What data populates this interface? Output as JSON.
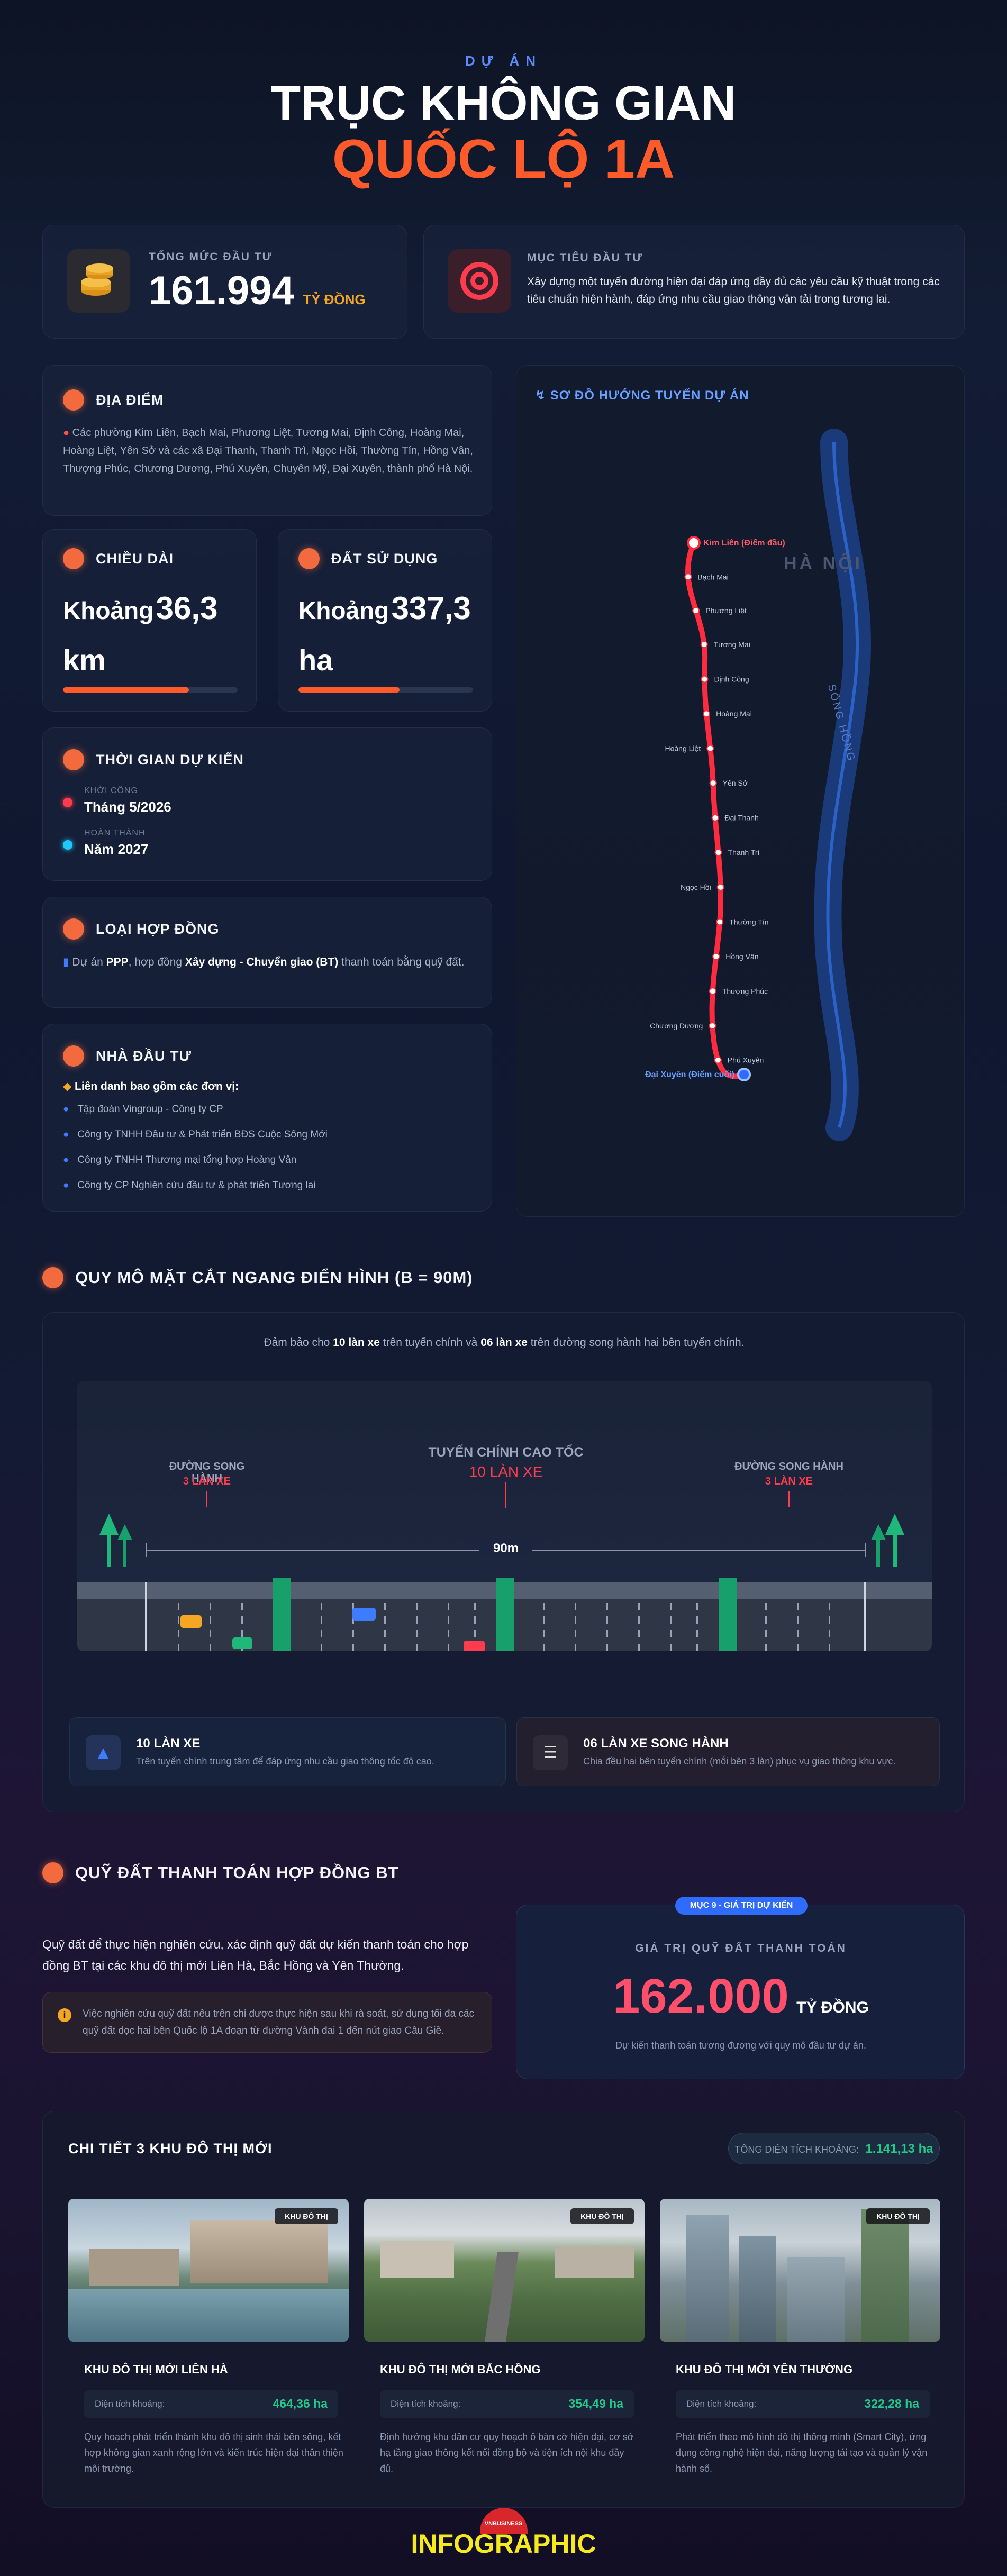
{
  "header": {
    "eyebrow": "DỰ ÁN",
    "title_line1": "TRỤC KHÔNG GIAN",
    "title_line2": "QUỐC LỘ 1A"
  },
  "investment": {
    "label": "TỔNG MỨC ĐẦU TƯ",
    "value": "161.994",
    "unit": "TỶ ĐỒNG",
    "icon": "coins-icon"
  },
  "goal": {
    "label": "MỤC TIÊU ĐẦU TƯ",
    "text": "Xây dựng một tuyến đường hiện đại đáp ứng đầy đủ các yêu cầu kỹ thuật trong các tiêu chuẩn hiện hành, đáp ứng nhu cầu giao thông vận tải trong tương lai.",
    "icon": "target-icon"
  },
  "location": {
    "title": "ĐỊA ĐIỂM",
    "text": "Các phường Kim Liên, Bạch Mai, Phương Liệt, Tương Mai, Định Công, Hoàng Mai, Hoàng Liệt, Yên Sở và các xã Đại Thanh, Thanh Trì, Ngọc Hồi, Thường Tín, Hồng Vân, Thượng Phúc, Chương Dương, Phú Xuyên, Chuyên Mỹ, Đại Xuyên, thành phố Hà Nội."
  },
  "length": {
    "title": "CHIỀU DÀI",
    "prefix": "Khoảng",
    "value": "36,3",
    "unit": "km",
    "fill": 0.72
  },
  "land": {
    "title": "ĐẤT SỬ DỤNG",
    "prefix": "Khoảng",
    "value": "337,3",
    "unit": "ha",
    "fill": 0.58
  },
  "timeline": {
    "title": "THỜI GIAN DỰ KIẾN",
    "start_label": "KHỞI CÔNG",
    "start_value": "Tháng 5/2026",
    "end_label": "HOÀN THÀNH",
    "end_value": "Năm 2027"
  },
  "contract": {
    "title": "LOẠI HỢP ĐỒNG",
    "t1": "Dự án ",
    "t2": "PPP",
    "t3": ", hợp đồng ",
    "t4": "Xây dựng - Chuyển giao (BT)",
    "t5": " thanh toán bằng quỹ đất."
  },
  "investors": {
    "title": "NHÀ ĐẦU TƯ",
    "intro": "Liên danh bao gồm các đơn vị:",
    "items": [
      "Tập đoàn Vingroup - Công ty CP",
      "Công ty TNHH Đầu tư & Phát triển BĐS Cuộc Sống Mới",
      "Công ty TNHH Thương mại tổng hợp Hoàng Vân",
      "Công ty CP Nghiên cứu đầu tư & phát triển Tương lai"
    ]
  },
  "map": {
    "title": "SƠ ĐỒ HƯỚNG TUYẾN DỰ ÁN",
    "city": "HÀ NỘI",
    "river": "SÔNG HỒNG",
    "start": "Kim Liên (Điểm đầu)",
    "end": "Đại Xuyên (Điểm cuối)",
    "stops": [
      "Bạch Mai",
      "Phương Liệt",
      "Tương Mai",
      "Định Công",
      "Hoàng Mai",
      "Hoàng Liệt",
      "Yên Sở",
      "Đại Thanh",
      "Thanh Trì",
      "Ngọc Hồi",
      "Thường Tín",
      "Hồng Vân",
      "Thượng Phúc",
      "Chương Dương",
      "Phú Xuyên"
    ]
  },
  "cross": {
    "title": "QUY MÔ MẶT CẮT NGANG ĐIỂN HÌNH (B = 90M)",
    "intro_1": "Đảm bảo cho ",
    "intro_2": "10 làn xe",
    "intro_3": " trên tuyến chính và ",
    "intro_4": "06 làn xe",
    "intro_5": " trên đường song hành hai bên tuyến chính.",
    "left_label": "ĐƯỜNG SONG HÀNH",
    "left_lanes": "3 LÀN XE",
    "center_label": "TUYẾN CHÍNH CAO TỐC",
    "center_lanes": "10 LÀN XE",
    "right_label": "ĐƯỜNG SONG HÀNH",
    "right_lanes": "3 LÀN XE",
    "width": "90m",
    "info1_title": "10 LÀN XE",
    "info1_text": "Trên tuyến chính trung tâm để đáp ứng nhu cầu giao thông tốc độ cao.",
    "info2_title": "06 LÀN XE SONG HÀNH",
    "info2_text": "Chia đều hai bên tuyến chính (mỗi bên 3 làn) phục vụ giao thông khu vực."
  },
  "bt": {
    "title": "QUỸ ĐẤT THANH TOÁN HỢP ĐỒNG BT",
    "text": "Quỹ đất để thực hiện nghiên cứu, xác định quỹ đất dự kiến thanh toán cho hợp đồng BT tại các khu đô thị mới Liên Hà, Bắc Hồng và Yên Thường.",
    "note": "Việc nghiên cứu quỹ đất nêu trên chỉ được thực hiện sau khi rà soát, sử dụng tối đa các quỹ đất dọc hai bên Quốc lộ 1A đoạn từ đường Vành đai 1 đến nút giao Cầu Giẽ.",
    "badge": "MỤC 9 - GIÁ TRỊ DỰ KIẾN",
    "value_label": "GIÁ TRỊ QUỸ ĐẤT THANH TOÁN",
    "value": "162.000",
    "unit": "TỶ ĐỒNG",
    "value_note": "Dự kiến thanh toán tương đương với quy mô đầu tư dự án."
  },
  "zones": {
    "title": "CHI TIẾT 3 KHU ĐÔ THỊ MỚI",
    "total_label": "TỔNG DIỆN TÍCH KHOẢNG:",
    "total_value": "1.141,13 ha",
    "tag": "KHU ĐÔ THỊ",
    "area_label": "Diện tích khoảng:",
    "items": [
      {
        "name": "KHU ĐÔ THỊ MỚI LIÊN HÀ",
        "area": "464,36 ha",
        "desc": "Quy hoạch phát triển thành khu đô thị sinh thái bên sông, kết hợp không gian xanh rộng lớn và kiến trúc hiện đại thân thiện môi trường."
      },
      {
        "name": "KHU ĐÔ THỊ MỚI BẮC HỒNG",
        "area": "354,49 ha",
        "desc": "Định hướng khu dân cư quy hoạch ô bàn cờ hiện đại, cơ sở hạ tầng giao thông kết nối đồng bộ và tiện ích nội khu đầy đủ."
      },
      {
        "name": "KHU ĐÔ THỊ MỚI YÊN THƯỜNG",
        "area": "322,28 ha",
        "desc": "Phát triển theo mô hình đô thị thông minh (Smart City), ứng dụng công nghệ hiện đại, năng lượng tái tạo và quản lý vận hành số."
      }
    ]
  },
  "footer": {
    "brand_small": "VNBUSINESS",
    "brand": "INFOGRAPHIC"
  },
  "colors": {
    "accent_orange": "#f26a3d",
    "route_red": "#ff3b4e",
    "money_pink": "#ff4f6a",
    "green": "#22c98a"
  }
}
